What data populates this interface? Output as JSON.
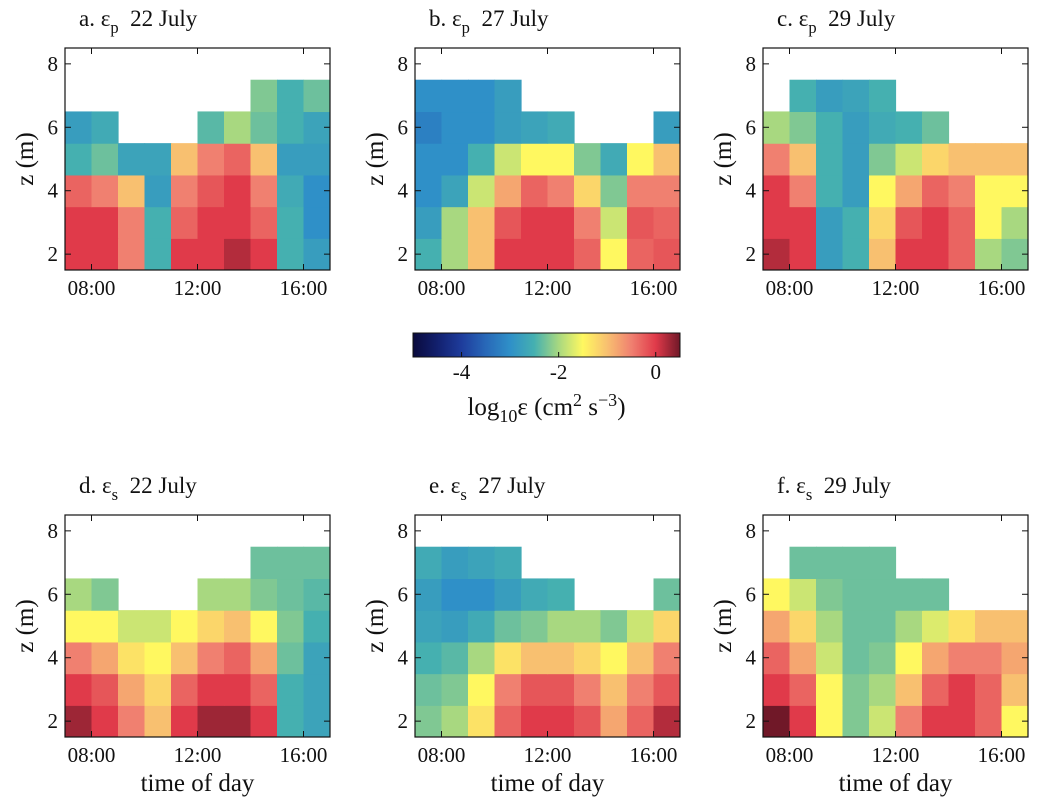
{
  "chart_data": [
    {
      "type": "heatmap",
      "title": [
        {
          "text": "a. ε"
        },
        {
          "text": "p",
          "shift": "sub"
        },
        {
          "text": "  22 July"
        }
      ],
      "ylabel": "z (m)",
      "x": [
        7.5,
        8.5,
        9.5,
        10.5,
        11.5,
        12.5,
        13.5,
        14.5,
        15.5,
        16.5
      ],
      "y": [
        2,
        3,
        4,
        5,
        6,
        7,
        8
      ],
      "values": [
        [
          0,
          0,
          -0.5,
          -2.5,
          0,
          0,
          0.2,
          0,
          -2.5,
          -2.8
        ],
        [
          0,
          0,
          -0.5,
          -2.5,
          -0.3,
          0,
          0,
          -0.3,
          -2.5,
          -3
        ],
        [
          -0.3,
          -0.5,
          -1,
          -2.8,
          -0.5,
          -0.2,
          0,
          -0.5,
          -2.6,
          -3
        ],
        [
          -2.5,
          -2.3,
          -2.7,
          -2.7,
          -1,
          -0.5,
          -0.3,
          -1,
          -2.8,
          -2.8
        ],
        [
          -2.8,
          -2.6,
          null,
          null,
          null,
          -2.4,
          -2,
          -2.3,
          -2.5,
          -2.7
        ],
        [
          null,
          null,
          null,
          null,
          null,
          null,
          null,
          -2.2,
          -2.5,
          -2.3
        ],
        [
          null,
          null,
          null,
          null,
          null,
          null,
          null,
          null,
          null,
          null
        ]
      ],
      "xlim": [
        7,
        17
      ],
      "ylim": [
        1.5,
        8.5
      ],
      "xticks": [
        {
          "value": 8,
          "label": "08:00"
        },
        {
          "value": 12,
          "label": "12:00"
        },
        {
          "value": 16,
          "label": "16:00"
        }
      ],
      "yticks": [
        2,
        4,
        6,
        8
      ]
    },
    {
      "type": "heatmap",
      "title": [
        {
          "text": "b. ε"
        },
        {
          "text": "p",
          "shift": "sub"
        },
        {
          "text": "  27 July"
        }
      ],
      "ylabel": "z (m)",
      "x": [
        7.5,
        8.5,
        9.5,
        10.5,
        11.5,
        12.5,
        13.5,
        14.5,
        15.5,
        16.5
      ],
      "y": [
        2,
        3,
        4,
        5,
        6,
        7,
        8
      ],
      "values": [
        [
          -2.5,
          -2,
          -1,
          0,
          0,
          0,
          -0.3,
          -1.5,
          -0.3,
          -0.2
        ],
        [
          -2.8,
          -2,
          -1,
          -0.2,
          0,
          0,
          -0.5,
          -1.8,
          -0.2,
          -0.3
        ],
        [
          -3,
          -2.7,
          -1.8,
          -0.8,
          -0.3,
          -0.5,
          -1.2,
          -2.2,
          -0.5,
          -0.5
        ],
        [
          -3,
          -3,
          -2.5,
          -1.8,
          -1.5,
          -1.5,
          -2.2,
          -2.6,
          -1.5,
          -1
        ],
        [
          -3.2,
          -3,
          -3,
          -2.8,
          -2.7,
          -2.6,
          null,
          null,
          null,
          -2.8
        ],
        [
          -3,
          -3,
          -3,
          -2.8,
          null,
          null,
          null,
          null,
          null,
          null
        ],
        [
          null,
          null,
          null,
          null,
          null,
          null,
          null,
          null,
          null,
          null
        ]
      ],
      "xlim": [
        7,
        17
      ],
      "ylim": [
        1.5,
        8.5
      ],
      "xticks": [
        {
          "value": 8,
          "label": "08:00"
        },
        {
          "value": 12,
          "label": "12:00"
        },
        {
          "value": 16,
          "label": "16:00"
        }
      ],
      "yticks": [
        2,
        4,
        6,
        8
      ]
    },
    {
      "type": "heatmap",
      "title": [
        {
          "text": "c. ε"
        },
        {
          "text": "p",
          "shift": "sub"
        },
        {
          "text": "  29 July"
        }
      ],
      "ylabel": "z (m)",
      "x": [
        7.5,
        8.5,
        9.5,
        10.5,
        11.5,
        12.5,
        13.5,
        14.5,
        15.5,
        16.5
      ],
      "y": [
        2,
        3,
        4,
        5,
        6,
        7,
        8
      ],
      "values": [
        [
          0.2,
          0,
          -2.8,
          -2.5,
          -1,
          0,
          0,
          -0.3,
          -2,
          -2.2
        ],
        [
          0,
          0,
          -2.8,
          -2.5,
          -1.2,
          -0.2,
          0,
          -0.3,
          -1.5,
          -2
        ],
        [
          0,
          -0.5,
          -2.5,
          -2.8,
          -1.5,
          -0.8,
          -0.3,
          -0.5,
          -1.5,
          -1.5
        ],
        [
          -0.5,
          -1,
          -2.5,
          -2.8,
          -2.2,
          -1.8,
          -1.2,
          -1,
          -1,
          -1
        ],
        [
          -2,
          -2.2,
          -2.5,
          -2.8,
          -2.6,
          -2.5,
          -2.3,
          null,
          null,
          null
        ],
        [
          null,
          -2.5,
          -2.8,
          -2.7,
          -2.5,
          null,
          null,
          null,
          null,
          null
        ],
        [
          null,
          null,
          null,
          null,
          null,
          null,
          null,
          null,
          null,
          null
        ]
      ],
      "xlim": [
        7,
        17
      ],
      "ylim": [
        1.5,
        8.5
      ],
      "xticks": [
        {
          "value": 8,
          "label": "08:00"
        },
        {
          "value": 12,
          "label": "12:00"
        },
        {
          "value": 16,
          "label": "16:00"
        }
      ],
      "yticks": [
        2,
        4,
        6,
        8
      ]
    },
    {
      "type": "heatmap",
      "title": [
        {
          "text": "d. ε"
        },
        {
          "text": "s",
          "shift": "sub"
        },
        {
          "text": "  22 July"
        }
      ],
      "ylabel": "z (m)",
      "xlabel": "time of day",
      "x": [
        7.5,
        8.5,
        9.5,
        10.5,
        11.5,
        12.5,
        13.5,
        14.5,
        15.5,
        16.5
      ],
      "y": [
        2,
        3,
        4,
        5,
        6,
        7,
        8
      ],
      "values": [
        [
          0.3,
          0,
          -0.5,
          -1,
          0,
          0.3,
          0.3,
          0,
          -2.5,
          -2.7
        ],
        [
          0,
          -0.2,
          -0.8,
          -1.2,
          -0.3,
          0,
          0,
          -0.3,
          -2.5,
          -2.7
        ],
        [
          -0.5,
          -0.8,
          -1.3,
          -1.5,
          -1,
          -0.5,
          -0.3,
          -0.8,
          -2.3,
          -2.7
        ],
        [
          -1.5,
          -1.5,
          -1.8,
          -1.8,
          -1.5,
          -1.2,
          -1,
          -1.5,
          -2.2,
          -2.5
        ],
        [
          -2,
          -2.2,
          null,
          null,
          null,
          -2,
          -2,
          -2.2,
          -2.3,
          -2.4
        ],
        [
          null,
          null,
          null,
          null,
          null,
          null,
          null,
          -2.3,
          -2.3,
          -2.3
        ],
        [
          null,
          null,
          null,
          null,
          null,
          null,
          null,
          null,
          null,
          null
        ]
      ],
      "xlim": [
        7,
        17
      ],
      "ylim": [
        1.5,
        8.5
      ],
      "xticks": [
        {
          "value": 8,
          "label": "08:00"
        },
        {
          "value": 12,
          "label": "12:00"
        },
        {
          "value": 16,
          "label": "16:00"
        }
      ],
      "yticks": [
        2,
        4,
        6,
        8
      ]
    },
    {
      "type": "heatmap",
      "title": [
        {
          "text": "e. ε"
        },
        {
          "text": "s",
          "shift": "sub"
        },
        {
          "text": "  27 July"
        }
      ],
      "ylabel": "z (m)",
      "xlabel": "time of day",
      "x": [
        7.5,
        8.5,
        9.5,
        10.5,
        11.5,
        12.5,
        13.5,
        14.5,
        15.5,
        16.5
      ],
      "y": [
        2,
        3,
        4,
        5,
        6,
        7,
        8
      ],
      "values": [
        [
          -2.2,
          -2,
          -1.3,
          -0.3,
          0,
          0,
          -0.2,
          -0.8,
          -0.3,
          0.2
        ],
        [
          -2.3,
          -2.2,
          -1.5,
          -0.5,
          -0.2,
          -0.2,
          -0.5,
          -1,
          -0.5,
          -0.2
        ],
        [
          -2.5,
          -2.4,
          -2,
          -1.3,
          -1,
          -1,
          -1.2,
          -1.5,
          -1,
          -0.5
        ],
        [
          -2.7,
          -2.8,
          -2.6,
          -2.3,
          -2.2,
          -2,
          -2,
          -2.2,
          -1.8,
          -1.2
        ],
        [
          -2.8,
          -3,
          -3,
          -2.8,
          -2.6,
          -2.5,
          null,
          null,
          null,
          -2.3
        ],
        [
          -2.6,
          -2.8,
          -2.7,
          -2.6,
          null,
          null,
          null,
          null,
          null,
          null
        ],
        [
          null,
          null,
          null,
          null,
          null,
          null,
          null,
          null,
          null,
          null
        ]
      ],
      "xlim": [
        7,
        17
      ],
      "ylim": [
        1.5,
        8.5
      ],
      "xticks": [
        {
          "value": 8,
          "label": "08:00"
        },
        {
          "value": 12,
          "label": "12:00"
        },
        {
          "value": 16,
          "label": "16:00"
        }
      ],
      "yticks": [
        2,
        4,
        6,
        8
      ]
    },
    {
      "type": "heatmap",
      "title": [
        {
          "text": "f. ε"
        },
        {
          "text": "s",
          "shift": "sub"
        },
        {
          "text": "  29 July"
        }
      ],
      "ylabel": "z (m)",
      "xlabel": "time of day",
      "x": [
        7.5,
        8.5,
        9.5,
        10.5,
        11.5,
        12.5,
        13.5,
        14.5,
        15.5,
        16.5
      ],
      "y": [
        2,
        3,
        4,
        5,
        6,
        7,
        8
      ],
      "values": [
        [
          0.5,
          0,
          -1.5,
          -2.2,
          -1.8,
          -0.5,
          0,
          0,
          -0.3,
          -1.5
        ],
        [
          0,
          -0.3,
          -1.5,
          -2.2,
          -2,
          -1,
          -0.3,
          0,
          -0.3,
          -1
        ],
        [
          -0.3,
          -0.8,
          -1.8,
          -2.3,
          -2.2,
          -1.5,
          -0.8,
          -0.5,
          -0.5,
          -0.8
        ],
        [
          -0.8,
          -1.2,
          -2,
          -2.3,
          -2.3,
          -2,
          -1.7,
          -1.3,
          -1,
          -1
        ],
        [
          -1.5,
          -1.8,
          -2.2,
          -2.3,
          -2.3,
          -2.3,
          -2.3,
          null,
          null,
          null
        ],
        [
          null,
          -2.3,
          -2.3,
          -2.3,
          -2.3,
          null,
          null,
          null,
          null,
          null
        ],
        [
          null,
          null,
          null,
          null,
          null,
          null,
          null,
          null,
          null,
          null
        ]
      ],
      "xlim": [
        7,
        17
      ],
      "ylim": [
        1.5,
        8.5
      ],
      "xticks": [
        {
          "value": 8,
          "label": "08:00"
        },
        {
          "value": 12,
          "label": "12:00"
        },
        {
          "value": 16,
          "label": "16:00"
        }
      ],
      "yticks": [
        2,
        4,
        6,
        8
      ]
    },
    {
      "type": "colorbar",
      "label": [
        {
          "text": "log"
        },
        {
          "text": "10",
          "shift": "sub"
        },
        {
          "text": "ε (cm"
        },
        {
          "text": "2",
          "shift": "sup"
        },
        {
          "text": " s"
        },
        {
          "text": "−3",
          "shift": "sup"
        },
        {
          "text": ")"
        }
      ],
      "clim": [
        -5,
        0.5
      ],
      "ticks": [
        -4,
        -2,
        0
      ],
      "colormap": [
        "#0a0a3c",
        "#12206e",
        "#1e3c9c",
        "#2868b8",
        "#2f90c8",
        "#45b0b0",
        "#a8d880",
        "#fff860",
        "#f8c070",
        "#f08070",
        "#e03a4a",
        "#701828"
      ]
    }
  ]
}
